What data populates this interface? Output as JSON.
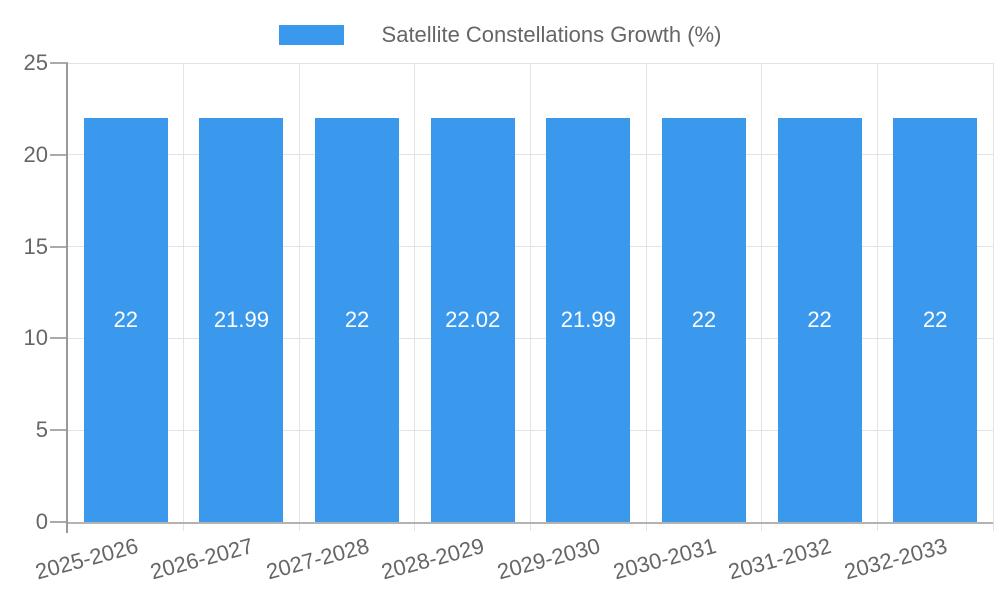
{
  "chart_data": {
    "type": "bar",
    "title": "Satellite Constellations Growth (%)",
    "legend": {
      "position": "top",
      "label": "Satellite Constellations Growth (%)"
    },
    "categories": [
      "2025-2026",
      "2026-2027",
      "2027-2028",
      "2028-2029",
      "2029-2030",
      "2030-2031",
      "2031-2032",
      "2032-2033"
    ],
    "values": [
      22,
      21.99,
      22,
      22.02,
      21.99,
      22,
      22,
      22
    ],
    "bar_labels": [
      "22",
      "21.99",
      "22",
      "22.02",
      "21.99",
      "22",
      "22",
      "22"
    ],
    "xlabel": "",
    "ylabel": "",
    "ylim": [
      0,
      25
    ],
    "y_ticks": [
      0,
      5,
      10,
      15,
      20,
      25
    ],
    "grid": true,
    "x_tick_rotation_deg": -15,
    "colors": {
      "bar": "#3b99ed",
      "grid": "#e3e3e3",
      "axis_line": "#999999",
      "baseline": "#b3b3b3",
      "tick": "#ababab",
      "text": "#666666",
      "bar_label_text": "#ffffff",
      "background": "#ffffff"
    }
  }
}
